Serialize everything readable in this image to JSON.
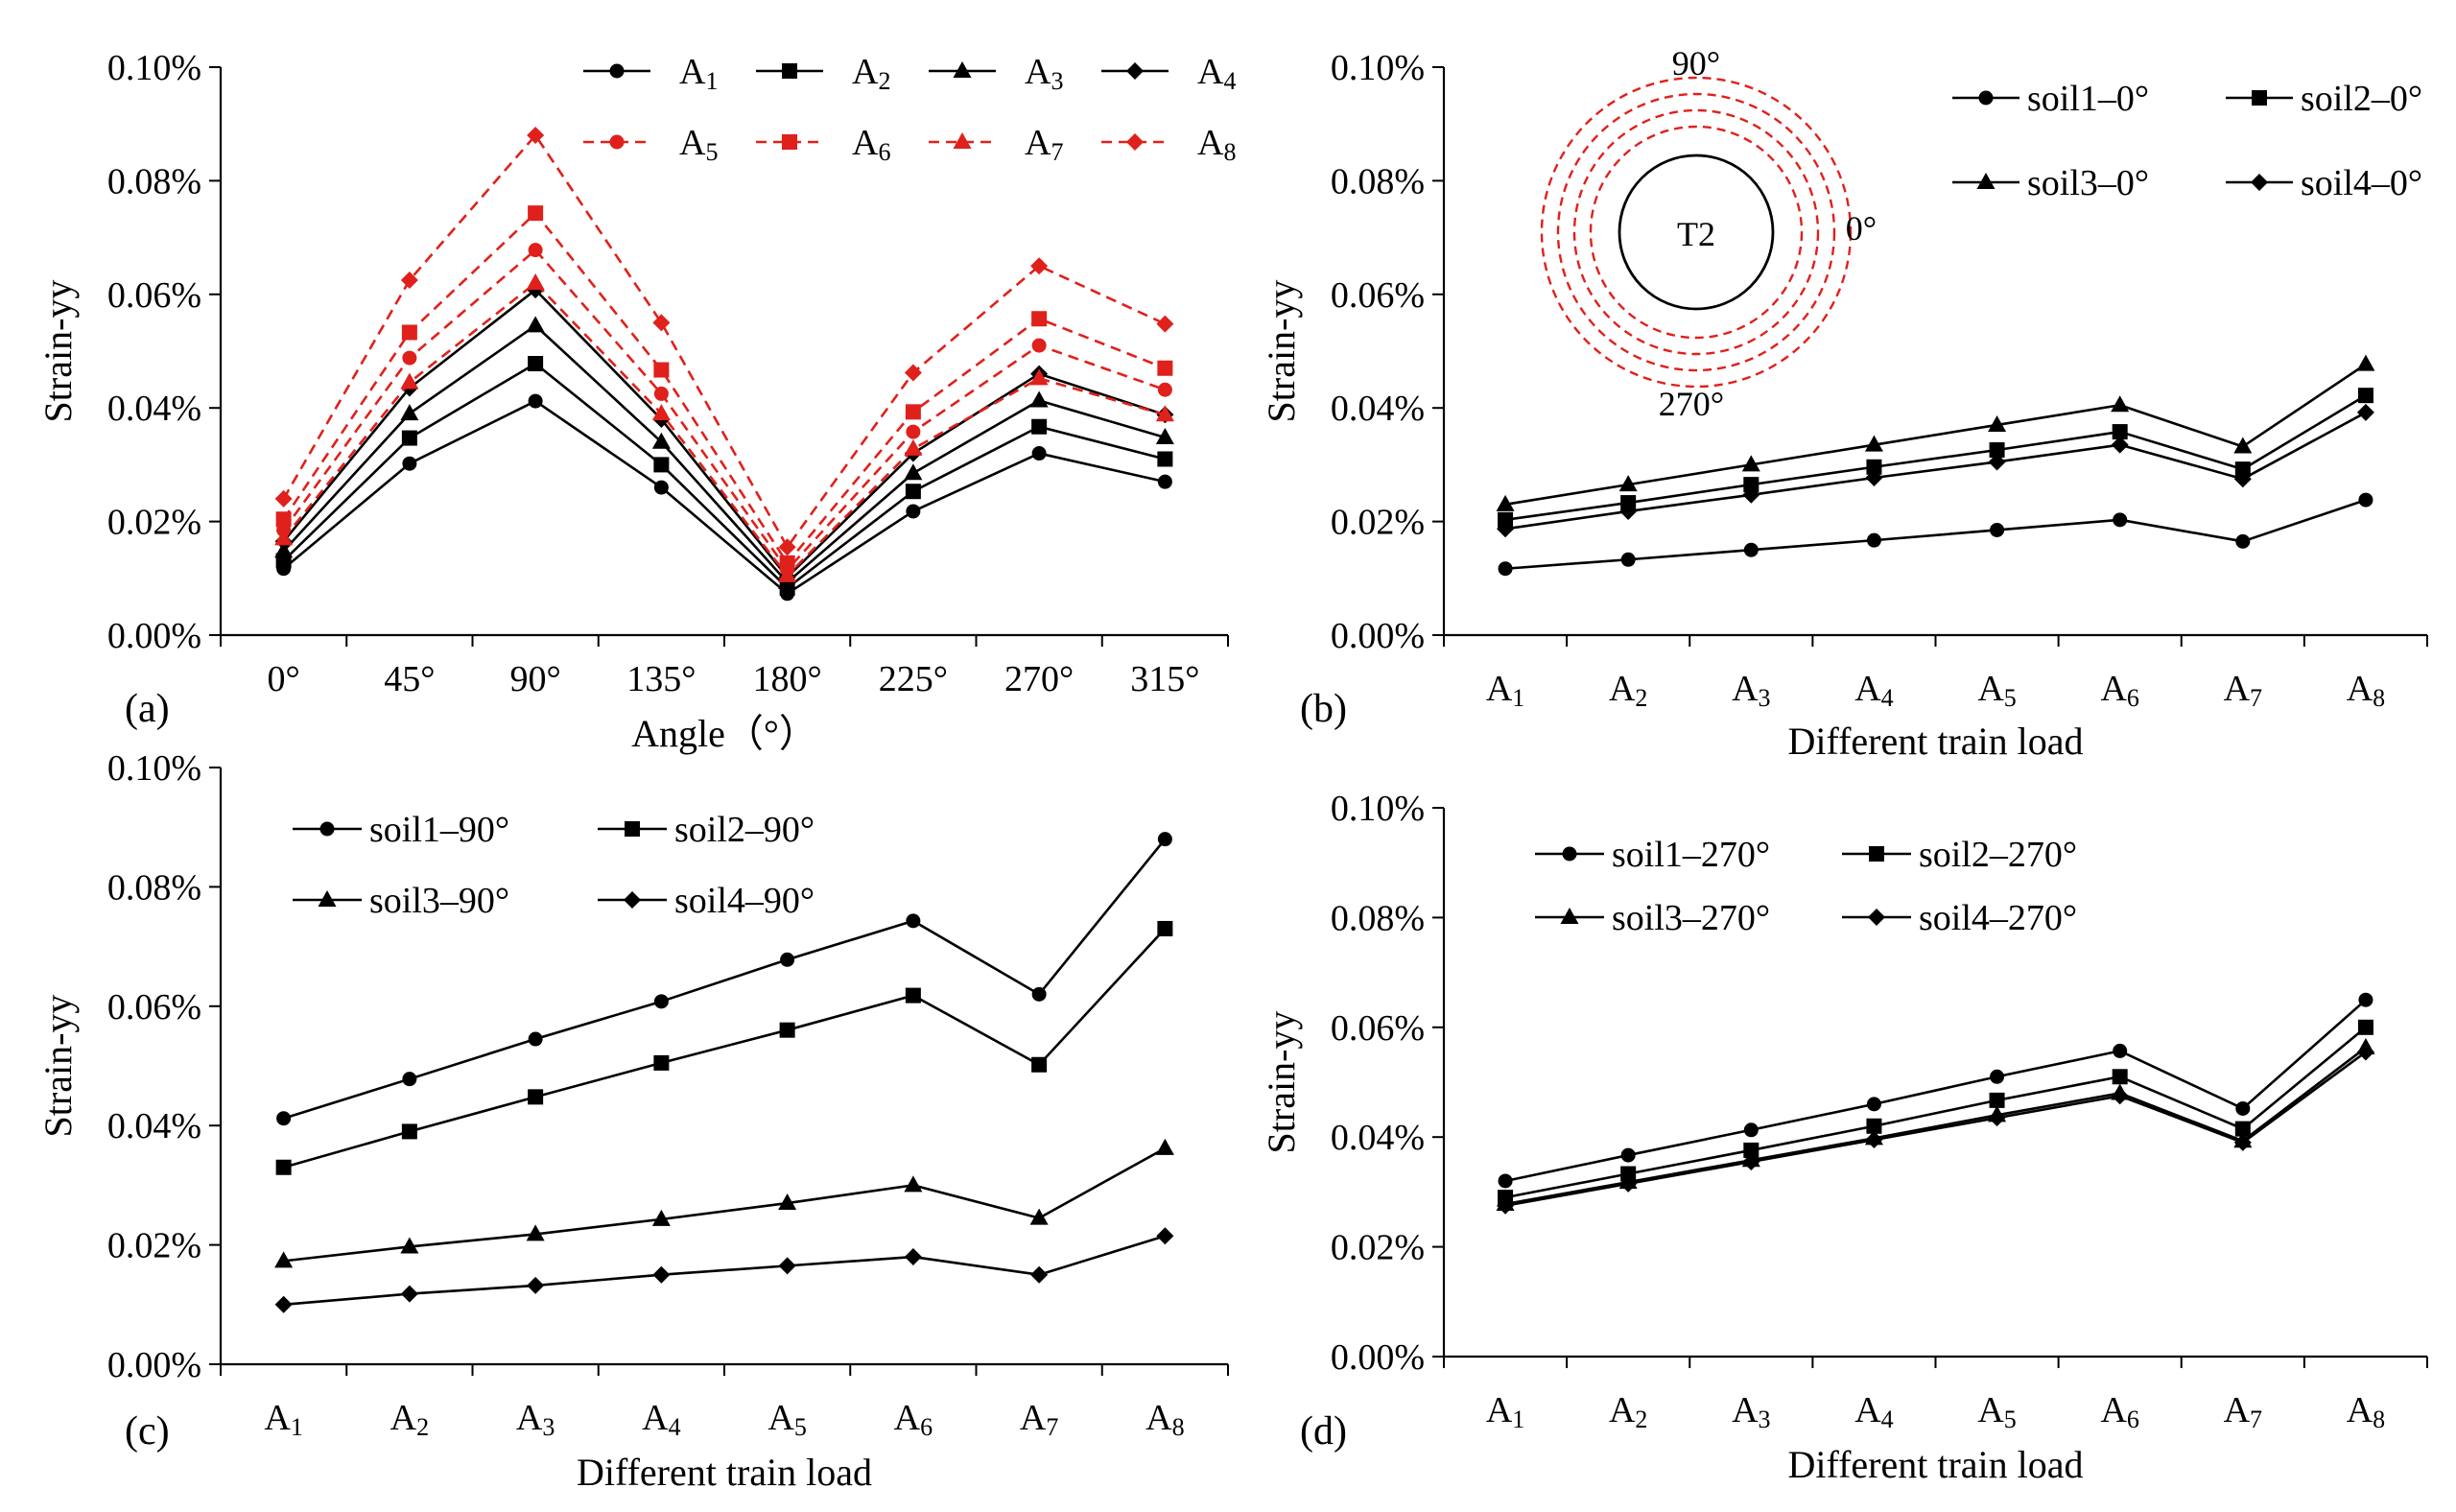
{
  "chart_data": [
    {
      "id": "a",
      "panel_label": "(a)",
      "type": "line",
      "xlabel": "Angle（°）",
      "ylabel": "Strain-yy",
      "ylim": [
        0,
        0.1
      ],
      "yticks": [
        "0.00%",
        "0.02%",
        "0.04%",
        "0.06%",
        "0.08%",
        "0.10%"
      ],
      "categories": [
        "0°",
        "45°",
        "90°",
        "135°",
        "180°",
        "225°",
        "270°",
        "315°"
      ],
      "legend_position": "top-right",
      "legend_columns": 4,
      "series": [
        {
          "name": "A",
          "sub": "1",
          "marker": "circle",
          "color": "#000000",
          "dash": "solid",
          "values": [
            0.0117,
            0.0302,
            0.0412,
            0.026,
            0.0073,
            0.0218,
            0.032,
            0.027
          ]
        },
        {
          "name": "A",
          "sub": "2",
          "marker": "square",
          "color": "#000000",
          "dash": "solid",
          "values": [
            0.0131,
            0.0347,
            0.0478,
            0.03,
            0.0083,
            0.0253,
            0.0367,
            0.031
          ]
        },
        {
          "name": "A",
          "sub": "3",
          "marker": "triangle",
          "color": "#000000",
          "dash": "solid",
          "values": [
            0.0148,
            0.039,
            0.0545,
            0.034,
            0.0093,
            0.0285,
            0.0413,
            0.0348
          ]
        },
        {
          "name": "A",
          "sub": "4",
          "marker": "diamond",
          "color": "#000000",
          "dash": "solid",
          "values": [
            0.0165,
            0.0435,
            0.0608,
            0.038,
            0.0102,
            0.032,
            0.046,
            0.0388
          ]
        },
        {
          "name": "A",
          "sub": "5",
          "marker": "circle",
          "color": "#e0201b",
          "dash": "dashed",
          "values": [
            0.0185,
            0.0488,
            0.0678,
            0.0425,
            0.0115,
            0.0358,
            0.051,
            0.0432
          ]
        },
        {
          "name": "A",
          "sub": "6",
          "marker": "square",
          "color": "#e0201b",
          "dash": "dashed",
          "values": [
            0.0204,
            0.0533,
            0.0743,
            0.0467,
            0.0127,
            0.0393,
            0.0557,
            0.047
          ]
        },
        {
          "name": "A",
          "sub": "7",
          "marker": "triangle",
          "color": "#e0201b",
          "dash": "dashed",
          "values": [
            0.017,
            0.0445,
            0.062,
            0.039,
            0.0105,
            0.0328,
            0.0452,
            0.0388
          ]
        },
        {
          "name": "A",
          "sub": "8",
          "marker": "diamond",
          "color": "#e0201b",
          "dash": "dashed",
          "values": [
            0.024,
            0.0625,
            0.088,
            0.055,
            0.0155,
            0.0462,
            0.065,
            0.0548
          ]
        }
      ]
    },
    {
      "id": "b",
      "panel_label": "(b)",
      "type": "line",
      "xlabel": "Different train load",
      "ylabel": "Strain-yy",
      "ylim": [
        0,
        0.1
      ],
      "yticks": [
        "0.00%",
        "0.02%",
        "0.04%",
        "0.06%",
        "0.08%",
        "0.10%"
      ],
      "categories": [
        {
          "main": "A",
          "sub": "1"
        },
        {
          "main": "A",
          "sub": "2"
        },
        {
          "main": "A",
          "sub": "3"
        },
        {
          "main": "A",
          "sub": "4"
        },
        {
          "main": "A",
          "sub": "5"
        },
        {
          "main": "A",
          "sub": "6"
        },
        {
          "main": "A",
          "sub": "7"
        },
        {
          "main": "A",
          "sub": "8"
        }
      ],
      "legend_position": "top-right",
      "legend_columns": 2,
      "inset": {
        "label_center": "T2",
        "label_top": "90°",
        "label_right": "0°",
        "label_bottom": "270°",
        "ring_color": "#e0201b",
        "ring_count": 4
      },
      "series": [
        {
          "name": "soil1–0°",
          "marker": "circle",
          "color": "#000000",
          "dash": "solid",
          "values": [
            0.0117,
            0.0133,
            0.015,
            0.0167,
            0.0185,
            0.0203,
            0.0165,
            0.0238
          ]
        },
        {
          "name": "soil2–0°",
          "marker": "square",
          "color": "#000000",
          "dash": "solid",
          "values": [
            0.0203,
            0.0233,
            0.0265,
            0.0296,
            0.0326,
            0.0358,
            0.0292,
            0.0422
          ]
        },
        {
          "name": "soil3–0°",
          "marker": "triangle",
          "color": "#000000",
          "dash": "solid",
          "values": [
            0.023,
            0.0265,
            0.03,
            0.0335,
            0.037,
            0.0405,
            0.0332,
            0.0477
          ]
        },
        {
          "name": "soil4–0°",
          "marker": "diamond",
          "color": "#000000",
          "dash": "solid",
          "values": [
            0.0187,
            0.0218,
            0.0247,
            0.0277,
            0.0305,
            0.0335,
            0.0275,
            0.0392
          ]
        }
      ]
    },
    {
      "id": "c",
      "panel_label": "(c)",
      "type": "line",
      "xlabel": "Different train load",
      "ylabel": "Strain-yy",
      "ylim": [
        0,
        0.1
      ],
      "yticks": [
        "0.00%",
        "0.02%",
        "0.04%",
        "0.06%",
        "0.08%",
        "0.10%"
      ],
      "categories": [
        {
          "main": "A",
          "sub": "1"
        },
        {
          "main": "A",
          "sub": "2"
        },
        {
          "main": "A",
          "sub": "3"
        },
        {
          "main": "A",
          "sub": "4"
        },
        {
          "main": "A",
          "sub": "5"
        },
        {
          "main": "A",
          "sub": "6"
        },
        {
          "main": "A",
          "sub": "7"
        },
        {
          "main": "A",
          "sub": "8"
        }
      ],
      "legend_position": "top-left",
      "legend_columns": 2,
      "series": [
        {
          "name": "soil1–90°",
          "marker": "circle",
          "color": "#000000",
          "dash": "solid",
          "values": [
            0.0412,
            0.0478,
            0.0545,
            0.0608,
            0.0678,
            0.0743,
            0.062,
            0.088
          ]
        },
        {
          "name": "soil2–90°",
          "marker": "square",
          "color": "#000000",
          "dash": "solid",
          "values": [
            0.033,
            0.039,
            0.0448,
            0.0505,
            0.056,
            0.0618,
            0.0502,
            0.073
          ]
        },
        {
          "name": "soil3–90°",
          "marker": "triangle",
          "color": "#000000",
          "dash": "solid",
          "values": [
            0.0173,
            0.0197,
            0.0218,
            0.0243,
            0.027,
            0.03,
            0.0245,
            0.0362
          ]
        },
        {
          "name": "soil4–90°",
          "marker": "diamond",
          "color": "#000000",
          "dash": "solid",
          "values": [
            0.01,
            0.0118,
            0.0132,
            0.015,
            0.0165,
            0.018,
            0.015,
            0.0215
          ]
        }
      ]
    },
    {
      "id": "d",
      "panel_label": "(d)",
      "type": "line",
      "xlabel": "Different train load",
      "ylabel": "Strain-yy",
      "ylim": [
        0,
        0.1
      ],
      "yticks": [
        "0.00%",
        "0.02%",
        "0.04%",
        "0.06%",
        "0.08%",
        "0.10%"
      ],
      "categories": [
        {
          "main": "A",
          "sub": "1"
        },
        {
          "main": "A",
          "sub": "2"
        },
        {
          "main": "A",
          "sub": "3"
        },
        {
          "main": "A",
          "sub": "4"
        },
        {
          "main": "A",
          "sub": "5"
        },
        {
          "main": "A",
          "sub": "6"
        },
        {
          "main": "A",
          "sub": "7"
        },
        {
          "main": "A",
          "sub": "8"
        }
      ],
      "legend_position": "top-left",
      "legend_columns": 2,
      "series": [
        {
          "name": "soil1–270°",
          "marker": "circle",
          "color": "#000000",
          "dash": "solid",
          "values": [
            0.032,
            0.0367,
            0.0413,
            0.046,
            0.051,
            0.0557,
            0.0452,
            0.065
          ]
        },
        {
          "name": "soil2–270°",
          "marker": "square",
          "color": "#000000",
          "dash": "solid",
          "values": [
            0.029,
            0.0333,
            0.0376,
            0.042,
            0.0467,
            0.051,
            0.0415,
            0.06
          ]
        },
        {
          "name": "soil3–270°",
          "marker": "triangle",
          "color": "#000000",
          "dash": "solid",
          "values": [
            0.0278,
            0.0318,
            0.0358,
            0.0398,
            0.044,
            0.048,
            0.0393,
            0.0563
          ]
        },
        {
          "name": "soil4–270°",
          "marker": "diamond",
          "color": "#000000",
          "dash": "solid",
          "values": [
            0.0275,
            0.0315,
            0.0355,
            0.0395,
            0.0435,
            0.0475,
            0.039,
            0.0555
          ]
        }
      ]
    }
  ]
}
